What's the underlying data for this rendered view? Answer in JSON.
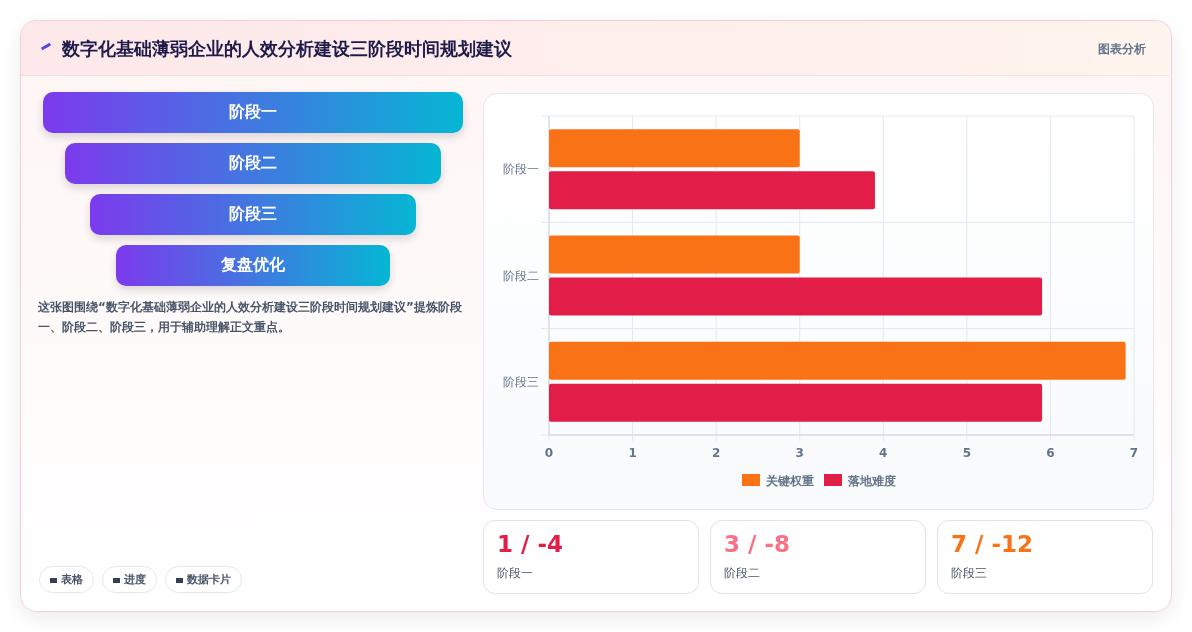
{
  "chart_data": [
    {
      "type": "other",
      "title": "数字化基础薄弱企业的人效分析建设三阶段时间规划建议",
      "categories": [
        "阶段一",
        "阶段二",
        "阶段三",
        "复盘优化"
      ],
      "annotations": [
        "图表分析",
        "这张图围绕“数字化基础薄弱企业的人效分析建设三阶段时间规划建议”提炼阶段一、阶段二、阶段三，用于辅助理解正文重点。",
        "表格",
        "进度",
        "数据卡片"
      ]
    },
    {
      "type": "bar",
      "orientation": "horizontal",
      "categories": [
        "阶段一",
        "阶段二",
        "阶段三"
      ],
      "series": [
        {
          "name": "关键权重",
          "color": "#f97316",
          "values": [
            3.0,
            3.0,
            6.9
          ]
        },
        {
          "name": "落地难度",
          "color": "#e11d48",
          "values": [
            3.9,
            5.9,
            5.9
          ]
        }
      ],
      "xlim": [
        0,
        7
      ],
      "xticks": [
        0,
        1,
        2,
        3,
        4,
        5,
        6,
        7
      ],
      "grid": true,
      "legend": "bottom"
    },
    {
      "type": "other",
      "categories": [
        "阶段一",
        "阶段二",
        "阶段三"
      ],
      "value_labels": [
        "1 / -4",
        "3 / -8",
        "7 / -12"
      ]
    }
  ]
}
